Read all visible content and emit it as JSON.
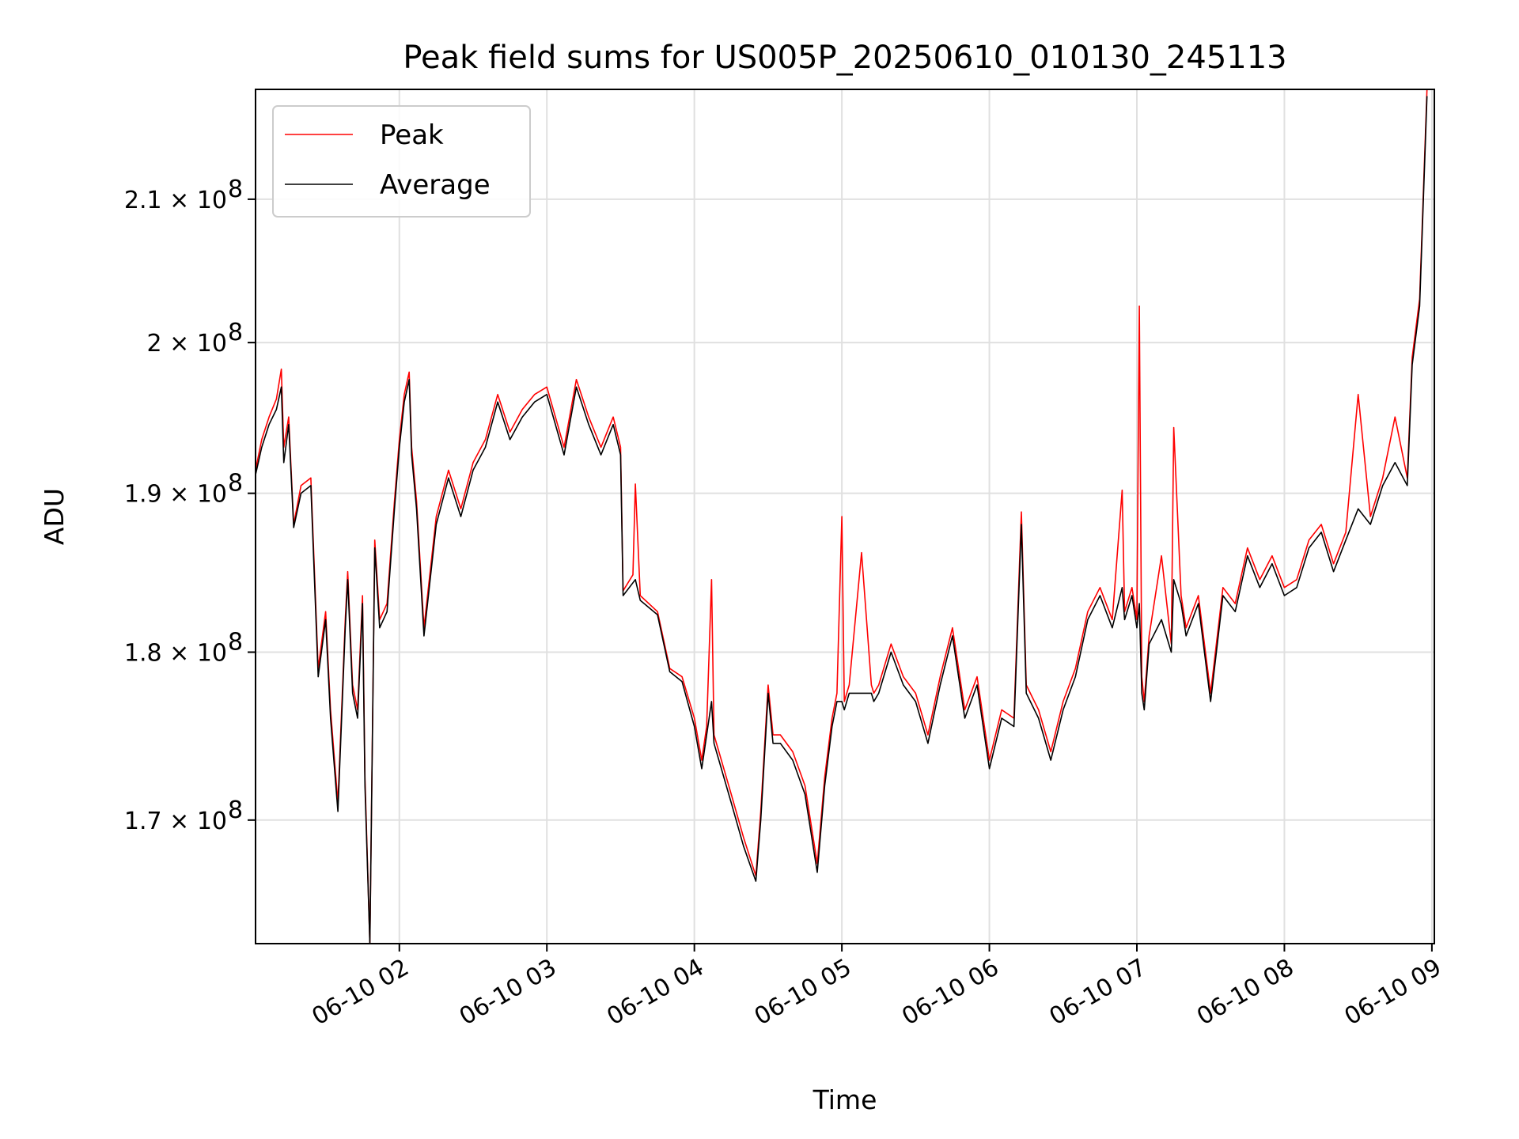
{
  "chart_data": {
    "type": "line",
    "title": "Peak field sums for US005P_20250610_010130_245113",
    "xlabel": "Time",
    "ylabel": "ADU",
    "y_scale": "log",
    "grid": true,
    "legend_position": "upper left",
    "xlim": [
      "2025-06-10 01:01:30",
      "2025-06-10 09:01:00"
    ],
    "ylim": [
      163000000,
      218000000
    ],
    "xticks": [
      {
        "value": "2025-06-10 02:00",
        "label": "06-10 02"
      },
      {
        "value": "2025-06-10 03:00",
        "label": "06-10 03"
      },
      {
        "value": "2025-06-10 04:00",
        "label": "06-10 04"
      },
      {
        "value": "2025-06-10 05:00",
        "label": "06-10 05"
      },
      {
        "value": "2025-06-10 06:00",
        "label": "06-10 06"
      },
      {
        "value": "2025-06-10 07:00",
        "label": "06-10 07"
      },
      {
        "value": "2025-06-10 08:00",
        "label": "06-10 08"
      },
      {
        "value": "2025-06-10 09:00",
        "label": "06-10 09"
      }
    ],
    "yticks": [
      {
        "value": 170000000,
        "label": "1.7 × 10",
        "exp": "8"
      },
      {
        "value": 180000000,
        "label": "1.8 × 10",
        "exp": "8"
      },
      {
        "value": 190000000,
        "label": "1.9 × 10",
        "exp": "8"
      },
      {
        "value": 200000000,
        "label": "2 × 10",
        "exp": "8"
      },
      {
        "value": 210000000,
        "label": "2.1 × 10",
        "exp": "8"
      }
    ],
    "series": [
      {
        "name": "Peak",
        "color": "#ff0000"
      },
      {
        "name": "Average",
        "color": "#000000"
      }
    ],
    "x": [
      "2025-06-10 01:01:30",
      "2025-06-10 01:04",
      "2025-06-10 01:07",
      "2025-06-10 01:10",
      "2025-06-10 01:12",
      "2025-06-10 01:13",
      "2025-06-10 01:15",
      "2025-06-10 01:17",
      "2025-06-10 01:20",
      "2025-06-10 01:24",
      "2025-06-10 01:27",
      "2025-06-10 01:30",
      "2025-06-10 01:32",
      "2025-06-10 01:35",
      "2025-06-10 01:38",
      "2025-06-10 01:39",
      "2025-06-10 01:41",
      "2025-06-10 01:43",
      "2025-06-10 01:45",
      "2025-06-10 01:46",
      "2025-06-10 01:48",
      "2025-06-10 01:50",
      "2025-06-10 01:52",
      "2025-06-10 01:55",
      "2025-06-10 01:58",
      "2025-06-10 02:00",
      "2025-06-10 02:02",
      "2025-06-10 02:04",
      "2025-06-10 02:05",
      "2025-06-10 02:07",
      "2025-06-10 02:10",
      "2025-06-10 02:15",
      "2025-06-10 02:20",
      "2025-06-10 02:25",
      "2025-06-10 02:30",
      "2025-06-10 02:35",
      "2025-06-10 02:40",
      "2025-06-10 02:45",
      "2025-06-10 02:50",
      "2025-06-10 02:55",
      "2025-06-10 03:00",
      "2025-06-10 03:07",
      "2025-06-10 03:12",
      "2025-06-10 03:17",
      "2025-06-10 03:22",
      "2025-06-10 03:27",
      "2025-06-10 03:30",
      "2025-06-10 03:31",
      "2025-06-10 03:35",
      "2025-06-10 03:36",
      "2025-06-10 03:38",
      "2025-06-10 03:45",
      "2025-06-10 03:50",
      "2025-06-10 03:55",
      "2025-06-10 04:00",
      "2025-06-10 04:03",
      "2025-06-10 04:05",
      "2025-06-10 04:07",
      "2025-06-10 04:08",
      "2025-06-10 04:10",
      "2025-06-10 04:15",
      "2025-06-10 04:20",
      "2025-06-10 04:25",
      "2025-06-10 04:27",
      "2025-06-10 04:30",
      "2025-06-10 04:32",
      "2025-06-10 04:35",
      "2025-06-10 04:40",
      "2025-06-10 04:45",
      "2025-06-10 04:50",
      "2025-06-10 04:53",
      "2025-06-10 04:56",
      "2025-06-10 04:58",
      "2025-06-10 05:00",
      "2025-06-10 05:01",
      "2025-06-10 05:03",
      "2025-06-10 05:08",
      "2025-06-10 05:12",
      "2025-06-10 05:13",
      "2025-06-10 05:15",
      "2025-06-10 05:20",
      "2025-06-10 05:25",
      "2025-06-10 05:30",
      "2025-06-10 05:35",
      "2025-06-10 05:40",
      "2025-06-10 05:45",
      "2025-06-10 05:50",
      "2025-06-10 05:55",
      "2025-06-10 06:00",
      "2025-06-10 06:05",
      "2025-06-10 06:10",
      "2025-06-10 06:13",
      "2025-06-10 06:15",
      "2025-06-10 06:20",
      "2025-06-10 06:25",
      "2025-06-10 06:30",
      "2025-06-10 06:35",
      "2025-06-10 06:40",
      "2025-06-10 06:45",
      "2025-06-10 06:50",
      "2025-06-10 06:54",
      "2025-06-10 06:55",
      "2025-06-10 06:58",
      "2025-06-10 07:00",
      "2025-06-10 07:01",
      "2025-06-10 07:02",
      "2025-06-10 07:03",
      "2025-06-10 07:05",
      "2025-06-10 07:10",
      "2025-06-10 07:14",
      "2025-06-10 07:15",
      "2025-06-10 07:18",
      "2025-06-10 07:20",
      "2025-06-10 07:25",
      "2025-06-10 07:30",
      "2025-06-10 07:35",
      "2025-06-10 07:40",
      "2025-06-10 07:45",
      "2025-06-10 07:50",
      "2025-06-10 07:55",
      "2025-06-10 08:00",
      "2025-06-10 08:05",
      "2025-06-10 08:10",
      "2025-06-10 08:15",
      "2025-06-10 08:20",
      "2025-06-10 08:25",
      "2025-06-10 08:30",
      "2025-06-10 08:35",
      "2025-06-10 08:40",
      "2025-06-10 08:45",
      "2025-06-10 08:50",
      "2025-06-10 08:52",
      "2025-06-10 08:55",
      "2025-06-10 08:58",
      "2025-06-10 09:01"
    ],
    "peak": [
      191.5,
      193.5,
      195.0,
      196.2,
      198.2,
      193.0,
      195.0,
      188.0,
      190.5,
      191.0,
      179.0,
      182.5,
      176.5,
      171.0,
      182.0,
      185.0,
      178.0,
      176.5,
      183.5,
      172.5,
      163.0,
      187.0,
      182.0,
      183.0,
      189.5,
      193.5,
      196.5,
      198.0,
      193.0,
      189.5,
      181.5,
      188.5,
      191.5,
      189.0,
      192.0,
      193.5,
      196.5,
      194.0,
      195.5,
      196.5,
      197.0,
      193.0,
      197.5,
      195.0,
      193.0,
      195.0,
      193.0,
      183.8,
      184.8,
      190.6,
      183.5,
      182.5,
      179.0,
      178.5,
      176.0,
      173.5,
      175.5,
      184.5,
      175.0,
      174.0,
      171.5,
      169.0,
      166.8,
      170.5,
      178.0,
      175.0,
      175.0,
      174.0,
      172.0,
      167.5,
      172.5,
      176.0,
      177.5,
      188.5,
      177.0,
      178.0,
      186.2,
      178.0,
      177.5,
      178.0,
      180.5,
      178.5,
      177.5,
      175.0,
      178.5,
      181.5,
      176.5,
      178.5,
      173.5,
      176.5,
      176.0,
      188.8,
      178.0,
      176.5,
      174.0,
      177.0,
      179.0,
      182.5,
      184.0,
      182.0,
      190.2,
      182.5,
      184.0,
      182.0,
      202.5,
      178.5,
      177.0,
      181.0,
      186.0,
      180.5,
      194.3,
      183.5,
      181.5,
      183.5,
      177.5,
      184.0,
      183.0,
      186.5,
      184.5,
      186.0,
      184.0,
      184.5,
      187.0,
      188.0,
      185.5,
      187.5,
      196.5,
      188.5,
      191.0,
      195.0,
      191.0,
      199.0,
      203.0,
      218.0
    ],
    "average": [
      191.2,
      193.0,
      194.5,
      195.5,
      197.0,
      192.0,
      194.5,
      187.8,
      190.0,
      190.5,
      178.5,
      182.0,
      176.0,
      170.5,
      181.5,
      184.5,
      177.5,
      176.0,
      183.0,
      172.0,
      163.0,
      186.5,
      181.5,
      182.5,
      189.0,
      193.0,
      196.0,
      197.5,
      192.5,
      189.0,
      181.0,
      188.0,
      191.0,
      188.5,
      191.5,
      193.0,
      196.0,
      193.5,
      195.0,
      196.0,
      196.5,
      192.5,
      197.0,
      194.5,
      192.5,
      194.5,
      192.5,
      183.5,
      184.3,
      184.5,
      183.2,
      182.3,
      178.8,
      178.2,
      175.5,
      173.0,
      175.0,
      177.0,
      174.5,
      173.5,
      171.0,
      168.5,
      166.5,
      170.0,
      177.5,
      174.5,
      174.5,
      173.5,
      171.5,
      167.0,
      172.0,
      175.5,
      177.0,
      177.0,
      176.5,
      177.5,
      177.5,
      177.5,
      177.0,
      177.5,
      180.0,
      178.0,
      177.0,
      174.5,
      178.0,
      181.0,
      176.0,
      178.0,
      173.0,
      176.0,
      175.5,
      188.0,
      177.5,
      176.0,
      173.5,
      176.5,
      178.5,
      182.0,
      183.5,
      181.5,
      184.0,
      182.0,
      183.5,
      181.5,
      183.0,
      177.5,
      176.5,
      180.5,
      182.0,
      180.0,
      184.5,
      183.0,
      181.0,
      183.0,
      177.0,
      183.5,
      182.5,
      186.0,
      184.0,
      185.5,
      183.5,
      184.0,
      186.5,
      187.5,
      185.0,
      187.0,
      189.0,
      188.0,
      190.5,
      192.0,
      190.5,
      198.5,
      202.5,
      217.5
    ]
  }
}
